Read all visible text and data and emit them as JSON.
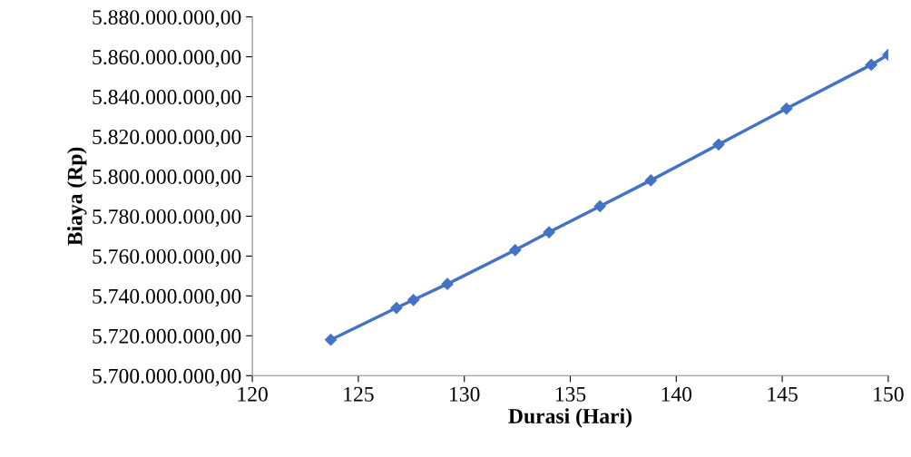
{
  "chart_data": {
    "type": "line",
    "xlabel": "Durasi (Hari)",
    "ylabel": "Biaya (Rp)",
    "x": [
      123.7,
      126.8,
      127.6,
      129.2,
      132.4,
      134.0,
      136.4,
      138.8,
      142.0,
      145.2,
      149.2,
      150.0
    ],
    "series": [
      {
        "color": "#4472c4",
        "values": [
          5718000000,
          5734000000,
          5738000000,
          5746000000,
          5763000000,
          5772000000,
          5785000000,
          5798000000,
          5816000000,
          5834000000,
          5856000000,
          5861000000
        ]
      }
    ],
    "xlim": [
      120,
      150
    ],
    "xticks": [
      120,
      125,
      130,
      135,
      140,
      145,
      150
    ],
    "ylim": [
      5700000000,
      5880000000
    ],
    "yticks": [
      {
        "value": 5700000000,
        "label": "5.700.000.000,00"
      },
      {
        "value": 5720000000,
        "label": "5.720.000.000,00"
      },
      {
        "value": 5740000000,
        "label": "5.740.000.000,00"
      },
      {
        "value": 5760000000,
        "label": "5.760.000.000,00"
      },
      {
        "value": 5780000000,
        "label": "5.780.000.000,00"
      },
      {
        "value": 5800000000,
        "label": "5.800.000.000,00"
      },
      {
        "value": 5820000000,
        "label": "5.820.000.000,00"
      },
      {
        "value": 5840000000,
        "label": "5.840.000.000,00"
      },
      {
        "value": 5860000000,
        "label": "5.860.000.000,00"
      },
      {
        "value": 5880000000,
        "label": "5.880.000.000,00"
      }
    ],
    "marker": "diamond",
    "line_style": "solid",
    "grid": false,
    "legend": false
  }
}
